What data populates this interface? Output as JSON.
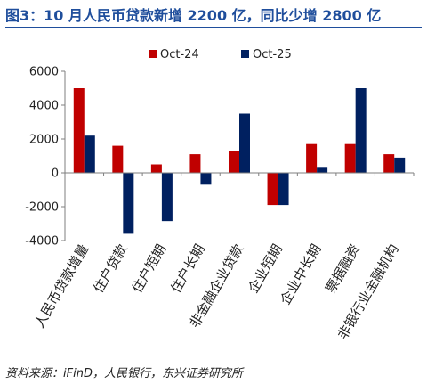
{
  "title": "图3：10 月人民币贷款新增 2200 亿，同比少增 2800 亿",
  "source": "资料来源：iFinD，人民银行，东兴证券研究所",
  "colors": {
    "series_1": "#c00000",
    "series_2": "#002060",
    "axis": "#7f7f7f",
    "title": "#1f4e9c"
  },
  "chart_data": {
    "type": "bar",
    "categories": [
      "人民币贷款增量",
      "住户贷款",
      "住户短期",
      "住户长期",
      "非金融企业贷款",
      "企业短期",
      "企业中长期",
      "票据融资",
      "非银行业金融机构"
    ],
    "series": [
      {
        "name": "Oct-24",
        "values": [
          5000,
          1600,
          500,
          1100,
          1300,
          -1900,
          1700,
          1700,
          1100
        ]
      },
      {
        "name": "Oct-25",
        "values": [
          2200,
          -3600,
          -2850,
          -700,
          3500,
          -1900,
          300,
          5000,
          900
        ]
      }
    ],
    "yticks": [
      "6000",
      "4000",
      "2000",
      "0",
      "-2000",
      "-4000"
    ],
    "ylim": [
      -4000,
      6000
    ],
    "legend_position": "top",
    "grid": false
  }
}
